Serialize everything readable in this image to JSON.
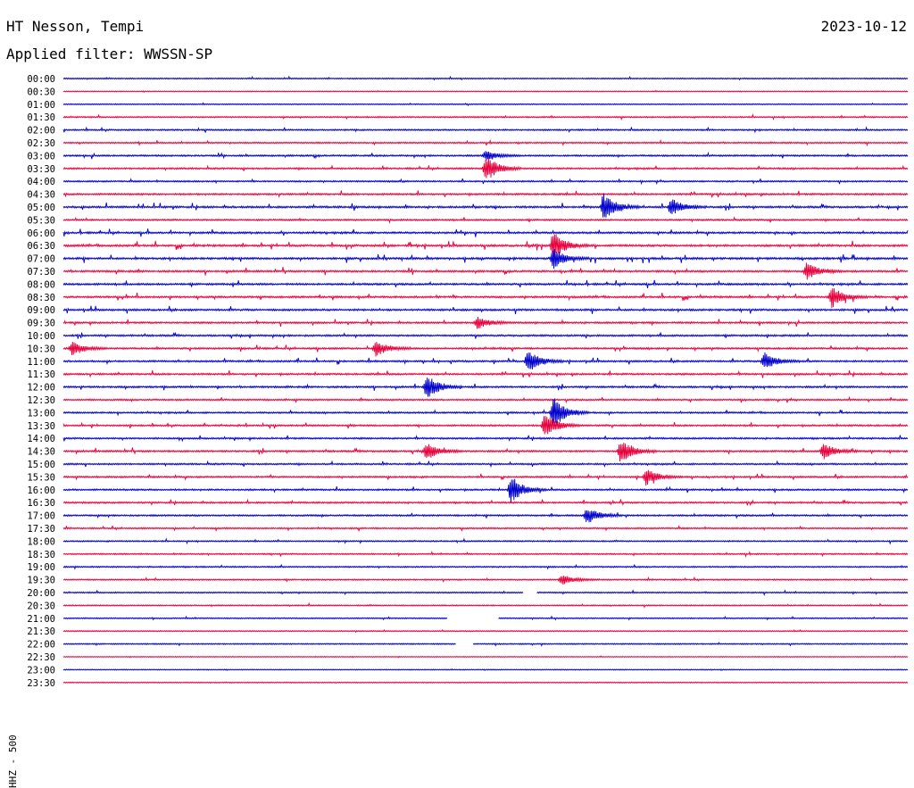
{
  "header": {
    "station": "HT Nesson, Tempi",
    "date": "2023-10-12",
    "filter": "Applied filter: WWSSN-SP"
  },
  "chart_data": {
    "type": "line",
    "subtype": "helicorder",
    "ylabel": "HHZ - 500",
    "row_labels": [
      "00:00",
      "00:30",
      "01:00",
      "01:30",
      "02:00",
      "02:30",
      "03:00",
      "03:30",
      "04:00",
      "04:30",
      "05:00",
      "05:30",
      "06:00",
      "06:30",
      "07:00",
      "07:30",
      "08:00",
      "08:30",
      "09:00",
      "09:30",
      "10:00",
      "10:30",
      "11:00",
      "11:30",
      "12:00",
      "12:30",
      "13:00",
      "13:30",
      "14:00",
      "14:30",
      "15:00",
      "15:30",
      "16:00",
      "16:30",
      "17:00",
      "17:30",
      "18:00",
      "18:30",
      "19:00",
      "19:30",
      "20:00",
      "20:30",
      "21:00",
      "21:30",
      "22:00",
      "22:30",
      "23:00",
      "23:30"
    ],
    "trace_colors": [
      "#0000cc",
      "#e8003c"
    ],
    "row_activity": [
      0.3,
      0.1,
      0.2,
      0.4,
      0.5,
      0.5,
      0.6,
      0.6,
      0.5,
      0.7,
      0.8,
      0.6,
      0.8,
      0.9,
      0.9,
      0.8,
      0.8,
      0.8,
      0.8,
      0.7,
      0.7,
      0.7,
      0.7,
      0.7,
      0.7,
      0.6,
      0.6,
      0.6,
      0.6,
      0.7,
      0.6,
      0.6,
      0.6,
      0.6,
      0.6,
      0.5,
      0.4,
      0.4,
      0.4,
      0.4,
      0.4,
      0.3,
      0.3,
      0.2,
      0.3,
      0.1,
      0.1,
      0.1
    ],
    "events": [
      {
        "row": "03:30",
        "x": 0.5,
        "amp": 16
      },
      {
        "row": "03:00",
        "x": 0.5,
        "amp": 6
      },
      {
        "row": "05:00",
        "x": 0.64,
        "amp": 15
      },
      {
        "row": "05:00",
        "x": 0.72,
        "amp": 10
      },
      {
        "row": "06:30",
        "x": 0.58,
        "amp": 16
      },
      {
        "row": "07:00",
        "x": 0.58,
        "amp": 12
      },
      {
        "row": "07:30",
        "x": 0.88,
        "amp": 10
      },
      {
        "row": "08:30",
        "x": 0.91,
        "amp": 12
      },
      {
        "row": "09:30",
        "x": 0.49,
        "amp": 7
      },
      {
        "row": "10:30",
        "x": 0.37,
        "amp": 9
      },
      {
        "row": "10:30",
        "x": 0.01,
        "amp": 8
      },
      {
        "row": "11:00",
        "x": 0.55,
        "amp": 13
      },
      {
        "row": "11:00",
        "x": 0.83,
        "amp": 10
      },
      {
        "row": "12:00",
        "x": 0.43,
        "amp": 14
      },
      {
        "row": "13:00",
        "x": 0.58,
        "amp": 18
      },
      {
        "row": "13:30",
        "x": 0.57,
        "amp": 16
      },
      {
        "row": "14:30",
        "x": 0.43,
        "amp": 10
      },
      {
        "row": "14:30",
        "x": 0.66,
        "amp": 14
      },
      {
        "row": "14:30",
        "x": 0.9,
        "amp": 10
      },
      {
        "row": "15:30",
        "x": 0.69,
        "amp": 10
      },
      {
        "row": "16:00",
        "x": 0.53,
        "amp": 15
      },
      {
        "row": "17:00",
        "x": 0.62,
        "amp": 10
      },
      {
        "row": "19:30",
        "x": 0.59,
        "amp": 6
      }
    ],
    "gaps": [
      {
        "row": "20:00",
        "start": 0.545,
        "end": 0.56
      },
      {
        "row": "21:00",
        "start": 0.455,
        "end": 0.515
      },
      {
        "row": "22:00",
        "start": 0.465,
        "end": 0.485
      }
    ]
  }
}
